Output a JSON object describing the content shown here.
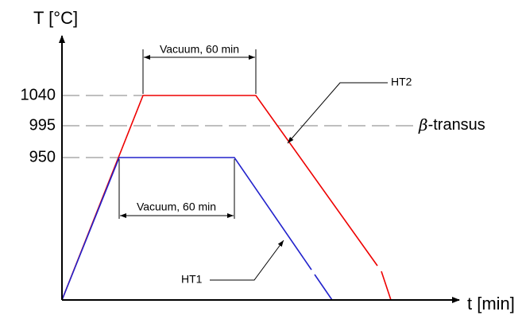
{
  "y_axis_label": "T [°C]",
  "x_axis_label": "t [min]",
  "levels": [
    "1040",
    "995",
    "950"
  ],
  "top_annotation": "Vacuum, 60 min",
  "bottom_annotation": "Vacuum, 60 min",
  "curves": [
    "HT1",
    "HT2"
  ],
  "reference": {
    "symbol": "β",
    "label": "-transus"
  }
}
